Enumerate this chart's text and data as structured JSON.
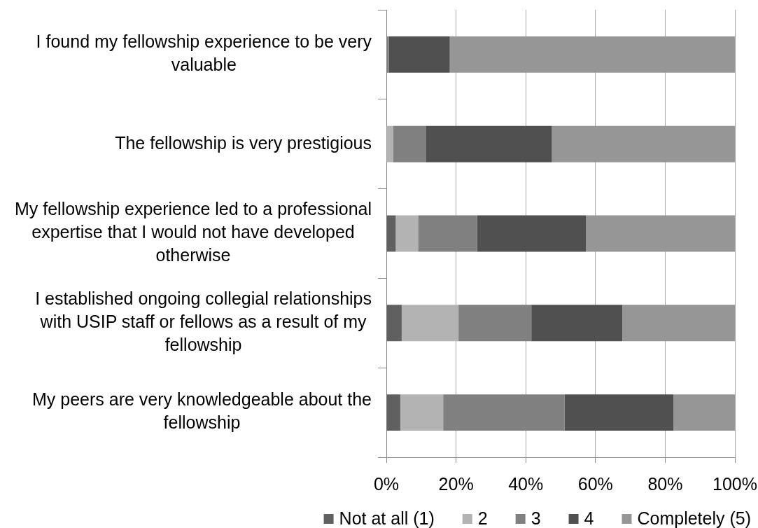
{
  "chart_data": {
    "type": "bar",
    "orientation": "horizontal",
    "stacked": true,
    "categories": [
      "I found my fellowship experience to be very valuable",
      "The fellowship is very prestigious",
      "My fellowship experience led to a professional expertise that I would not have developed otherwise",
      "I established ongoing collegial relationships with USIP staff or fellows as a result of my fellowship",
      "My peers are very knowledgeable about the fellowship"
    ],
    "series": [
      {
        "name": "Not at all (1)",
        "color": "#606060",
        "values": [
          0,
          0,
          2.7,
          4.4,
          4.0
        ]
      },
      {
        "name": "2",
        "color": "#b3b3b3",
        "values": [
          0,
          1.9,
          6.4,
          16.3,
          12.3
        ]
      },
      {
        "name": "3",
        "color": "#808080",
        "values": [
          0.7,
          9.4,
          16.9,
          20.9,
          34.8
        ]
      },
      {
        "name": "4",
        "color": "#505050",
        "values": [
          17.5,
          36.2,
          31.3,
          26.1,
          31.3
        ]
      },
      {
        "name": "Completely (5)",
        "color": "#969696",
        "values": [
          81.8,
          52.5,
          42.7,
          32.3,
          17.6
        ]
      }
    ],
    "xlim": [
      0,
      100
    ],
    "xticks": [
      {
        "value": 0,
        "label": "0%"
      },
      {
        "value": 20,
        "label": "20%"
      },
      {
        "value": 40,
        "label": "40%"
      },
      {
        "value": 60,
        "label": "60%"
      },
      {
        "value": 80,
        "label": "80%"
      },
      {
        "value": 100,
        "label": "100%"
      }
    ],
    "grid": "x",
    "legend": "bottom"
  }
}
